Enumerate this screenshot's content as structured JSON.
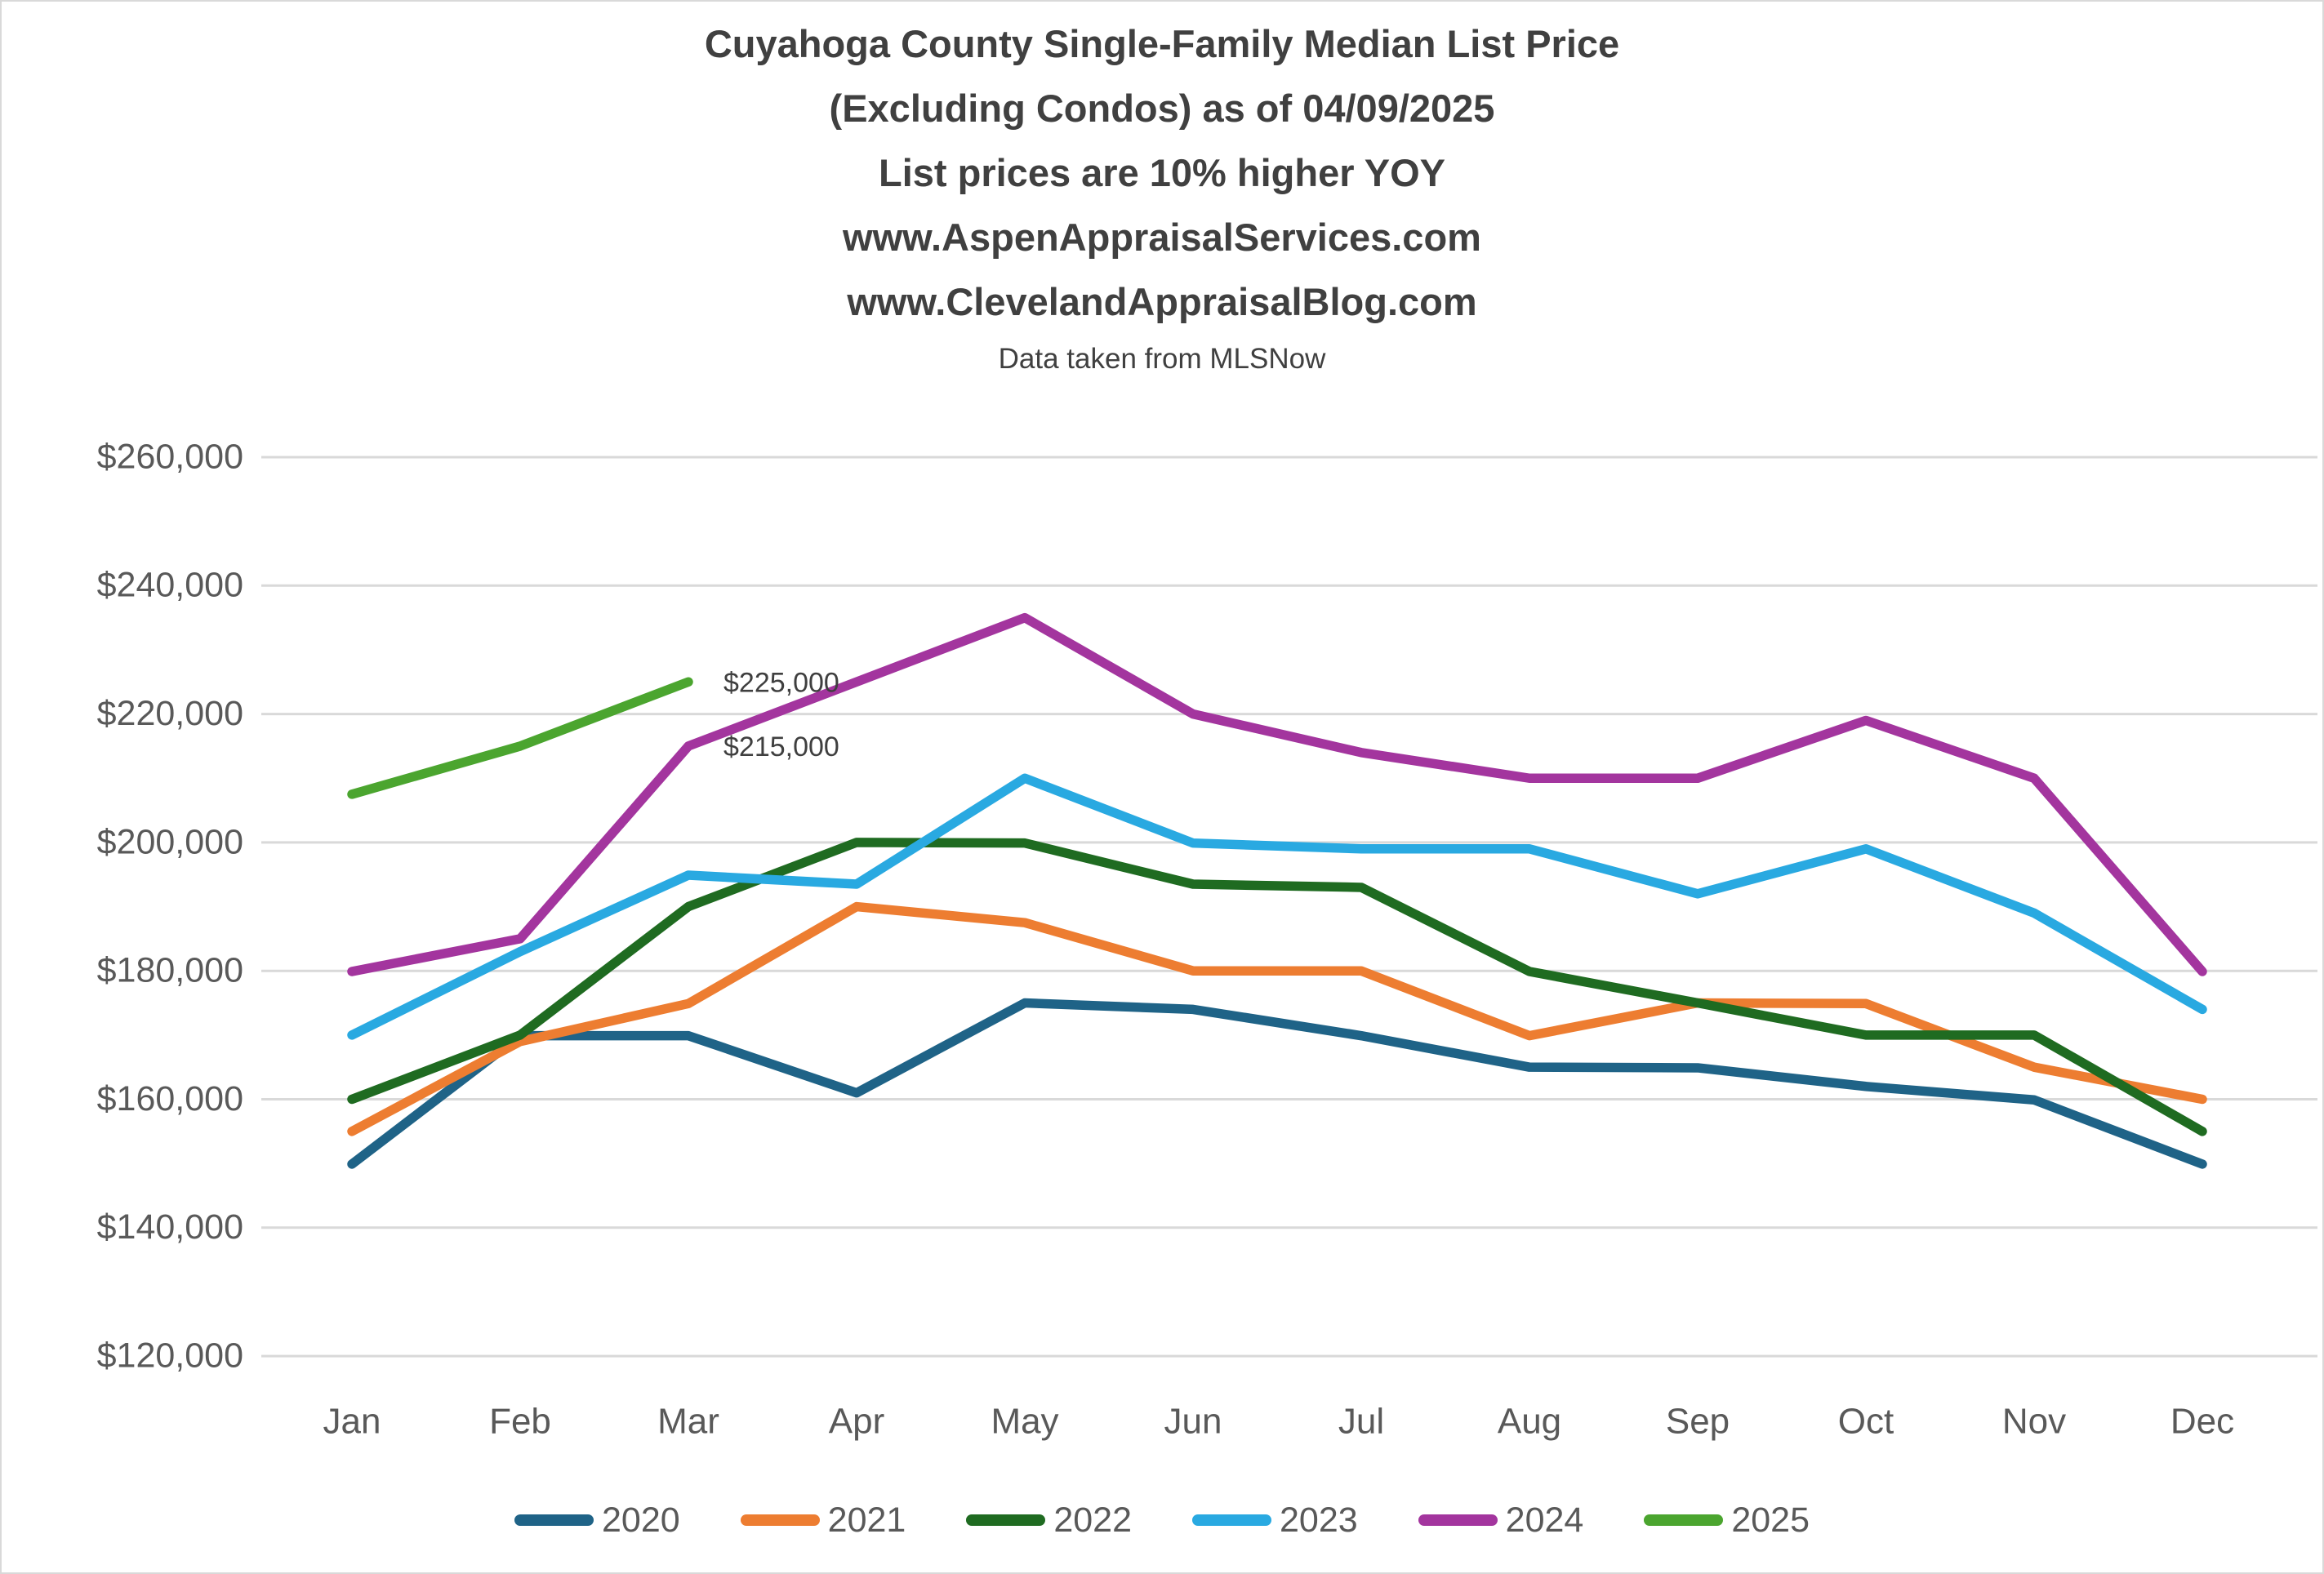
{
  "title_lines": [
    "Cuyahoga County Single-Family Median List Price",
    "(Excluding Condos) as of 04/09/2025",
    "List prices are 10% higher YOY",
    "www.AspenAppraisalServices.com",
    "www.ClevelandAppraisalBlog.com"
  ],
  "subtitle": "Data taken from MLSNow",
  "chart_data": {
    "type": "line",
    "title": "Cuyahoga County Single-Family Median List Price (Excluding Condos) as of 04/09/2025",
    "xlabel": "",
    "ylabel": "",
    "categories": [
      "Jan",
      "Feb",
      "Mar",
      "Apr",
      "May",
      "Jun",
      "Jul",
      "Aug",
      "Sep",
      "Oct",
      "Nov",
      "Dec"
    ],
    "series": [
      {
        "name": "2020",
        "color": "#1f6387",
        "values": [
          149900,
          169900,
          169900,
          161000,
          175000,
          174000,
          169900,
          165000,
          164900,
          162000,
          159900,
          149900
        ]
      },
      {
        "name": "2021",
        "color": "#ed7d31",
        "values": [
          155000,
          169000,
          174900,
          190000,
          187500,
          180000,
          180000,
          169900,
          175000,
          174900,
          165000,
          160000
        ]
      },
      {
        "name": "2022",
        "color": "#1f6b21",
        "values": [
          160000,
          170000,
          190000,
          200000,
          199900,
          193500,
          193000,
          179900,
          175000,
          170000,
          170000,
          155000
        ]
      },
      {
        "name": "2023",
        "color": "#29a9e1",
        "values": [
          170000,
          183000,
          194900,
          193500,
          210000,
          199900,
          199000,
          199000,
          192000,
          199000,
          189000,
          174000
        ]
      },
      {
        "name": "2024",
        "color": "#a3359e",
        "values": [
          179900,
          185000,
          215000,
          225000,
          235000,
          220000,
          214000,
          210000,
          210000,
          219000,
          210000,
          179900
        ]
      },
      {
        "name": "2025",
        "color": "#4ba52f",
        "values": [
          207500,
          215000,
          225000,
          null,
          null,
          null,
          null,
          null,
          null,
          null,
          null,
          null
        ]
      }
    ],
    "ylim": [
      120000,
      260000
    ],
    "ytick_step": 20000,
    "ytick_labels": [
      "$260,000",
      "$240,000",
      "$220,000",
      "$200,000",
      "$180,000",
      "$160,000",
      "$140,000",
      "$120,000"
    ],
    "grid": true,
    "legend_position": "bottom",
    "annotations": [
      {
        "text": "$225,000",
        "series": "2025",
        "month": "Mar",
        "value": 225000
      },
      {
        "text": "$215,000",
        "series": "2024",
        "month": "Mar",
        "value": 215000
      }
    ]
  }
}
